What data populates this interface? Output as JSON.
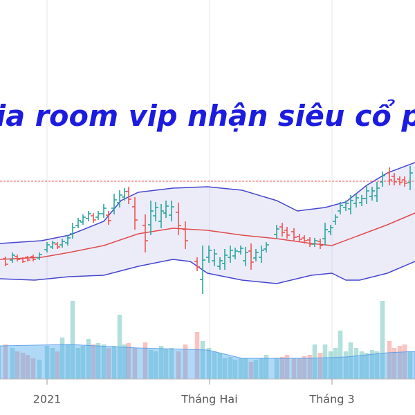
{
  "chart_data": {
    "type": "ohlc",
    "overlay_text": "ia room vip nhận siêu cổ p",
    "text_color": "#1c1ce0",
    "xlim": [
      0,
      600
    ],
    "xticks": [
      {
        "value": 68,
        "label": "2021"
      },
      {
        "value": 303,
        "label": "Tháng Hai"
      },
      {
        "value": 480,
        "label": "Tháng 3"
      }
    ],
    "ylim": [
      0,
      600
    ],
    "volume_ylim": [
      0,
      548
    ],
    "grid": true,
    "up_color": "#26a69a",
    "down_color": "#ef5350",
    "band_color": "#4545d0",
    "middle_color": "#e04a4a",
    "reference_line": 338,
    "x": [
      8,
      18,
      25,
      33,
      40,
      48,
      57,
      68,
      76,
      83,
      90,
      98,
      105,
      113,
      120,
      128,
      135,
      142,
      150,
      157,
      165,
      173,
      180,
      186,
      195,
      210,
      218,
      225,
      233,
      240,
      248,
      258,
      268,
      285,
      293,
      302,
      310,
      318,
      325,
      333,
      340,
      348,
      355,
      363,
      370,
      378,
      385,
      400,
      408,
      415,
      425,
      433,
      440,
      448,
      455,
      463,
      470,
      478,
      485,
      492,
      500,
      507,
      515,
      523,
      530,
      538,
      545,
      553,
      563,
      570,
      578,
      585,
      593
    ],
    "open": [
      226,
      224,
      229,
      226,
      228,
      229,
      227,
      239,
      243,
      247,
      246,
      249,
      262,
      274,
      279,
      284,
      288,
      286,
      291,
      289,
      299,
      307,
      315,
      323,
      301,
      274,
      275,
      288,
      280,
      292,
      289,
      293,
      268,
      222,
      196,
      228,
      223,
      215,
      219,
      228,
      230,
      236,
      223,
      237,
      227,
      228,
      240,
      261,
      272,
      267,
      265,
      258,
      256,
      253,
      247,
      251,
      255,
      265,
      280,
      295,
      300,
      298,
      306,
      307,
      313,
      316,
      317,
      337,
      350,
      345,
      341,
      340,
      336
    ],
    "high": [
      229,
      235,
      232,
      228,
      230,
      232,
      235,
      250,
      252,
      250,
      255,
      260,
      278,
      285,
      290,
      295,
      292,
      295,
      305,
      295,
      320,
      325,
      328,
      330,
      315,
      290,
      310,
      308,
      305,
      310,
      310,
      307,
      280,
      228,
      245,
      245,
      240,
      228,
      240,
      245,
      242,
      245,
      243,
      248,
      240,
      245,
      250,
      275,
      278,
      272,
      270,
      262,
      260,
      257,
      256,
      255,
      278,
      275,
      290,
      308,
      310,
      318,
      320,
      318,
      332,
      330,
      337,
      352,
      358,
      350,
      345,
      345,
      360
    ],
    "low": [
      215,
      220,
      222,
      220,
      222,
      222,
      224,
      235,
      240,
      240,
      242,
      245,
      255,
      270,
      275,
      280,
      278,
      282,
      285,
      275,
      290,
      300,
      310,
      305,
      268,
      235,
      260,
      280,
      270,
      285,
      280,
      260,
      240,
      208,
      175,
      220,
      215,
      210,
      210,
      220,
      225,
      232,
      215,
      210,
      222,
      220,
      235,
      255,
      258,
      255,
      252,
      250,
      248,
      243,
      243,
      240,
      245,
      260,
      275,
      290,
      295,
      290,
      300,
      302,
      305,
      310,
      308,
      330,
      332,
      332,
      332,
      330,
      325
    ],
    "close": [
      218,
      231,
      225,
      222,
      224,
      225,
      232,
      246,
      249,
      243,
      251,
      256,
      271,
      281,
      286,
      291,
      282,
      291,
      299,
      281,
      311,
      318,
      323,
      312,
      282,
      252,
      295,
      300,
      295,
      302,
      301,
      274,
      252,
      214,
      224,
      238,
      233,
      223,
      231,
      238,
      237,
      241,
      235,
      221,
      235,
      238,
      246,
      269,
      264,
      260,
      257,
      254,
      252,
      247,
      252,
      245,
      268,
      271,
      286,
      303,
      306,
      310,
      314,
      313,
      324,
      324,
      328,
      346,
      340,
      337,
      336,
      335,
      350
    ],
    "volume": [
      50,
      45,
      40,
      38,
      35,
      30,
      28,
      48,
      45,
      40,
      60,
      50,
      113,
      45,
      48,
      58,
      50,
      52,
      50,
      45,
      48,
      93,
      50,
      52,
      45,
      53,
      42,
      40,
      48,
      44,
      45,
      40,
      50,
      68,
      55,
      45,
      40,
      38,
      30,
      32,
      28,
      30,
      30,
      25,
      28,
      30,
      35,
      30,
      32,
      35,
      30,
      30,
      33,
      35,
      50,
      38,
      50,
      40,
      45,
      70,
      40,
      53,
      45,
      40,
      38,
      42,
      40,
      113,
      55,
      45,
      48,
      50,
      40
    ],
    "upper_band": {
      "x": [
        0,
        60,
        100,
        150,
        175,
        200,
        250,
        300,
        350,
        400,
        430,
        470,
        500,
        530,
        560,
        600
      ],
      "values": [
        248,
        252,
        260,
        280,
        310,
        322,
        328,
        330,
        325,
        310,
        295,
        300,
        308,
        332,
        350,
        365
      ]
    },
    "middle_band": {
      "x": [
        0,
        60,
        100,
        150,
        200,
        250,
        300,
        350,
        400,
        450,
        480,
        520,
        560,
        600
      ],
      "values": [
        225,
        228,
        235,
        245,
        262,
        270,
        267,
        260,
        255,
        248,
        245,
        260,
        275,
        292
      ]
    },
    "lower_band": {
      "x": [
        0,
        50,
        100,
        150,
        200,
        250,
        275,
        300,
        350,
        400,
        450,
        480,
        500,
        520,
        560,
        600
      ],
      "values": [
        197,
        195,
        200,
        202,
        215,
        225,
        222,
        205,
        195,
        190,
        202,
        205,
        195,
        195,
        205,
        222
      ]
    },
    "volume_ma": {
      "x": [
        0,
        100,
        200,
        300,
        350,
        450,
        500,
        560,
        600
      ],
      "values": [
        48,
        50,
        45,
        42,
        30,
        30,
        32,
        38,
        40
      ]
    }
  }
}
